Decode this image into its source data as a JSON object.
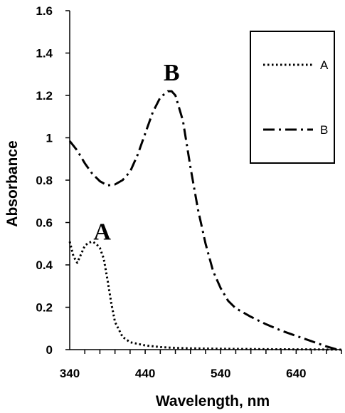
{
  "chart_data": {
    "type": "line",
    "title": "",
    "xlabel": "Wavelength, nm",
    "ylabel": "Absorbance",
    "xlim": [
      340,
      700
    ],
    "ylim": [
      0,
      1.6
    ],
    "x_ticks": [
      340,
      440,
      540,
      640
    ],
    "y_ticks": [
      0,
      0.2,
      0.4,
      0.6,
      0.8,
      1,
      1.2,
      1.4,
      1.6
    ],
    "y_tick_labels": [
      "0",
      "0.2",
      "0.4",
      "0.6",
      "0.8",
      "1",
      "1.2",
      "1.4",
      "1.6"
    ],
    "grid": false,
    "legend_position": "top-right",
    "series": [
      {
        "name": "A",
        "style": "dotted",
        "x": [
          340,
          345,
          350,
          355,
          360,
          365,
          370,
          375,
          380,
          385,
          390,
          395,
          400,
          410,
          420,
          440,
          460,
          480,
          500,
          540,
          600,
          660,
          700
        ],
        "y": [
          0.51,
          0.44,
          0.41,
          0.45,
          0.49,
          0.505,
          0.51,
          0.5,
          0.48,
          0.43,
          0.33,
          0.22,
          0.13,
          0.06,
          0.035,
          0.02,
          0.012,
          0.008,
          0.006,
          0.004,
          0.002,
          0.001,
          0.0
        ]
      },
      {
        "name": "B",
        "style": "dash-dot",
        "x": [
          340,
          350,
          360,
          370,
          380,
          390,
          400,
          410,
          420,
          430,
          440,
          450,
          460,
          470,
          475,
          480,
          490,
          500,
          510,
          520,
          530,
          540,
          550,
          560,
          580,
          600,
          620,
          640,
          660,
          680,
          695
        ],
        "y": [
          0.985,
          0.94,
          0.88,
          0.83,
          0.795,
          0.775,
          0.78,
          0.8,
          0.84,
          0.92,
          1.02,
          1.12,
          1.19,
          1.22,
          1.22,
          1.2,
          1.08,
          0.86,
          0.66,
          0.5,
          0.37,
          0.29,
          0.23,
          0.195,
          0.155,
          0.12,
          0.09,
          0.065,
          0.04,
          0.015,
          0.0
        ]
      }
    ],
    "annotations": [
      {
        "text": "A",
        "x": 383,
        "y": 0.52
      },
      {
        "text": "B",
        "x": 475,
        "y": 1.27
      }
    ]
  }
}
